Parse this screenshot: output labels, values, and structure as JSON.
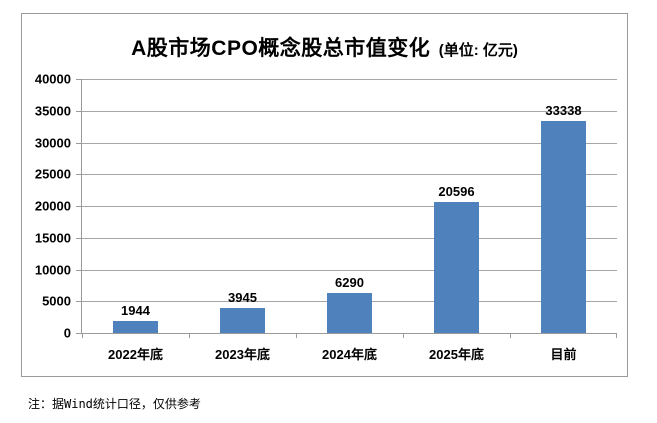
{
  "title": {
    "main": "A股市场CPO概念股总市值变化",
    "unit": "(单位: 亿元)"
  },
  "footnote": "注：据Wind统计口径，仅供参考",
  "colors": {
    "bar": "#4f81bd",
    "gridline": "#a6a6a6",
    "axis": "#9a9a9a",
    "frame_border": "#9b9b9b",
    "text": "#000000",
    "background": "#ffffff"
  },
  "chart_data": {
    "type": "bar",
    "categories": [
      "2022年底",
      "2023年底",
      "2024年底",
      "2025年底",
      "目前"
    ],
    "values": [
      1944,
      3945,
      6290,
      20596,
      33338
    ],
    "title": "A股市场CPO概念股总市值变化",
    "unit_label": "(单位: 亿元)",
    "xlabel": "",
    "ylabel": "",
    "ylim": [
      0,
      40000
    ],
    "ytick_step": 5000,
    "yticks": [
      0,
      5000,
      10000,
      15000,
      20000,
      25000,
      30000,
      35000,
      40000
    ],
    "grid": true,
    "legend": false,
    "data_labels": true,
    "bar_color": "#4f81bd"
  }
}
